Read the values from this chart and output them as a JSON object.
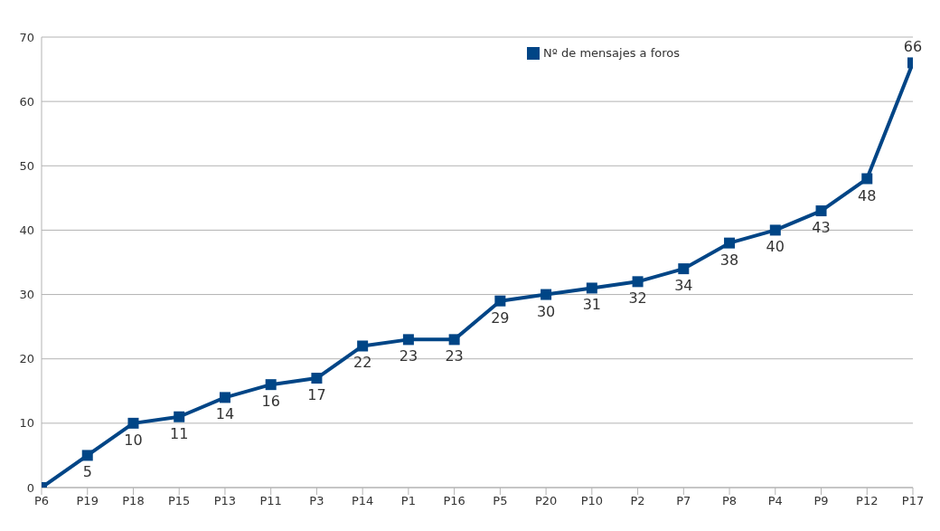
{
  "chart_data": {
    "type": "line",
    "categories": [
      "P6",
      "P19",
      "P18",
      "P15",
      "P13",
      "P11",
      "P3",
      "P14",
      "P1",
      "P16",
      "P5",
      "P20",
      "P10",
      "P2",
      "P7",
      "P8",
      "P4",
      "P9",
      "P12",
      "P17"
    ],
    "series": [
      {
        "name": "Nº de mensajes a foros",
        "color": "#004586",
        "values": [
          0,
          5,
          10,
          11,
          14,
          16,
          17,
          22,
          23,
          23,
          29,
          30,
          31,
          32,
          34,
          38,
          40,
          43,
          48,
          66
        ],
        "value_labels": [
          null,
          "5",
          "10",
          "11",
          "14",
          "16",
          "17",
          "22",
          "23",
          "23",
          "29",
          "30",
          "31",
          "32",
          "34",
          "38",
          "40",
          "43",
          "48",
          "66"
        ]
      }
    ],
    "ylim": [
      0,
      70
    ],
    "yticks": [
      0,
      10,
      20,
      30,
      40,
      50,
      60,
      70
    ],
    "grid": "y",
    "legend": "top right",
    "marker": "square",
    "line_style": "solid"
  }
}
